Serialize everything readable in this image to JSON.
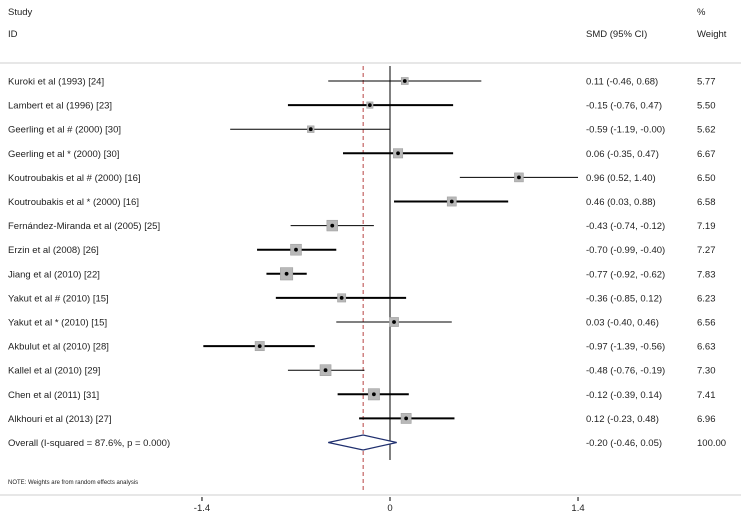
{
  "header": {
    "study_label": "Study",
    "id_label": "ID",
    "effect_label": "SMD (95% CI)",
    "weight_top": "%",
    "weight_label": "Weight"
  },
  "note": "NOTE: Weights are from random effects analysis",
  "chart_data": {
    "type": "forest",
    "xlim": [
      -1.7,
      1.7
    ],
    "x_ticks": [
      {
        "value": -1.4,
        "label": "-1.4"
      },
      {
        "value": 0,
        "label": "0"
      },
      {
        "value": 1.4,
        "label": "1.4"
      }
    ],
    "overall_line_x": -0.2,
    "studies": [
      {
        "label": "Kuroki et al (1993) [24]",
        "est": 0.11,
        "lo": -0.46,
        "hi": 0.68,
        "ci": "0.11 (-0.46, 0.68)",
        "weight": "5.77",
        "thick": false
      },
      {
        "label": "Lambert et al (1996) [23]",
        "est": -0.15,
        "lo": -0.76,
        "hi": 0.47,
        "ci": "-0.15 (-0.76, 0.47)",
        "weight": "5.50",
        "thick": true
      },
      {
        "label": "Geerling et al # (2000) [30]",
        "est": -0.59,
        "lo": -1.19,
        "hi": -0.0,
        "ci": "-0.59 (-1.19, -0.00)",
        "weight": "5.62",
        "thick": false
      },
      {
        "label": "Geerling et al * (2000) [30]",
        "est": 0.06,
        "lo": -0.35,
        "hi": 0.47,
        "ci": "0.06 (-0.35, 0.47)",
        "weight": "6.67",
        "thick": true
      },
      {
        "label": "Koutroubakis et al # (2000) [16]",
        "est": 0.96,
        "lo": 0.52,
        "hi": 1.4,
        "ci": "0.96 (0.52, 1.40)",
        "weight": "6.50",
        "thick": false
      },
      {
        "label": "Koutroubakis et al * (2000) [16]",
        "est": 0.46,
        "lo": 0.03,
        "hi": 0.88,
        "ci": "0.46 (0.03, 0.88)",
        "weight": "6.58",
        "thick": true
      },
      {
        "label": "Fernández-Miranda et al (2005) [25]",
        "est": -0.43,
        "lo": -0.74,
        "hi": -0.12,
        "ci": "-0.43 (-0.74, -0.12)",
        "weight": "7.19",
        "thick": false
      },
      {
        "label": "Erzin et al (2008) [26]",
        "est": -0.7,
        "lo": -0.99,
        "hi": -0.4,
        "ci": "-0.70 (-0.99, -0.40)",
        "weight": "7.27",
        "thick": true
      },
      {
        "label": "Jiang et al (2010) [22]",
        "est": -0.77,
        "lo": -0.92,
        "hi": -0.62,
        "ci": "-0.77 (-0.92, -0.62)",
        "weight": "7.83",
        "thick": true
      },
      {
        "label": "Yakut et al # (2010) [15]",
        "est": -0.36,
        "lo": -0.85,
        "hi": 0.12,
        "ci": "-0.36 (-0.85, 0.12)",
        "weight": "6.23",
        "thick": true
      },
      {
        "label": "Yakut et al * (2010) [15]",
        "est": 0.03,
        "lo": -0.4,
        "hi": 0.46,
        "ci": "0.03 (-0.40, 0.46)",
        "weight": "6.56",
        "thick": false
      },
      {
        "label": "Akbulut et al (2010) [28]",
        "est": -0.97,
        "lo": -1.39,
        "hi": -0.56,
        "ci": "-0.97 (-1.39, -0.56)",
        "weight": "6.63",
        "thick": true
      },
      {
        "label": "Kallel et al (2010) [29]",
        "est": -0.48,
        "lo": -0.76,
        "hi": -0.19,
        "ci": "-0.48 (-0.76, -0.19)",
        "weight": "7.30",
        "thick": false
      },
      {
        "label": "Chen et al (2011) [31]",
        "est": -0.12,
        "lo": -0.39,
        "hi": 0.14,
        "ci": "-0.12 (-0.39, 0.14)",
        "weight": "7.41",
        "thick": true
      },
      {
        "label": "Alkhouri et al (2013) [27]",
        "est": 0.12,
        "lo": -0.23,
        "hi": 0.48,
        "ci": "0.12 (-0.23, 0.48)",
        "weight": "6.96",
        "thick": true
      }
    ],
    "overall": {
      "label": "Overall  (I-squared = 87.6%, p = 0.000)",
      "est": -0.2,
      "lo": -0.46,
      "hi": 0.05,
      "ci": "-0.20 (-0.46, 0.05)",
      "weight": "100.00"
    },
    "colors": {
      "diamond": "#1f2f6e",
      "overall_line": "#b03030",
      "box": "#b8b8b8",
      "line": "#000000"
    }
  }
}
